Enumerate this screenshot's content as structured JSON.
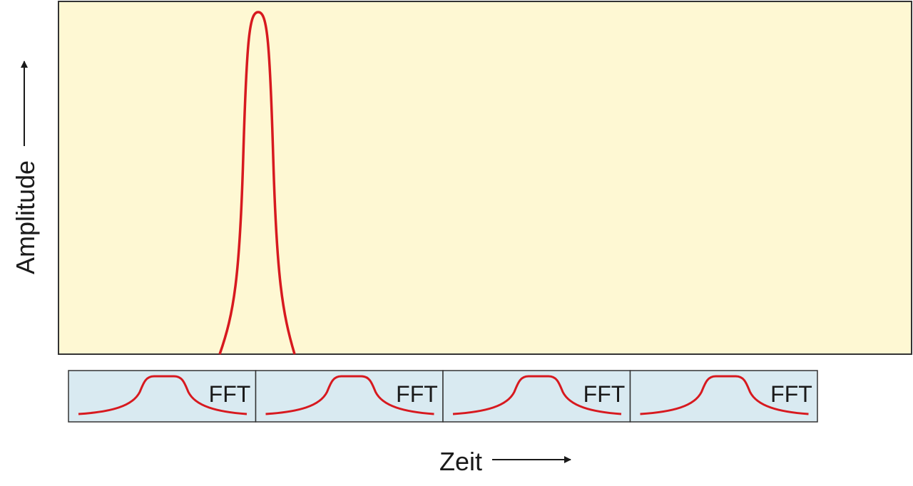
{
  "axes": {
    "y_label": "Amplitude",
    "x_label": "Zeit"
  },
  "windows": [
    {
      "label": "FFT"
    },
    {
      "label": "FFT"
    },
    {
      "label": "FFT"
    },
    {
      "label": "FFT"
    }
  ]
}
